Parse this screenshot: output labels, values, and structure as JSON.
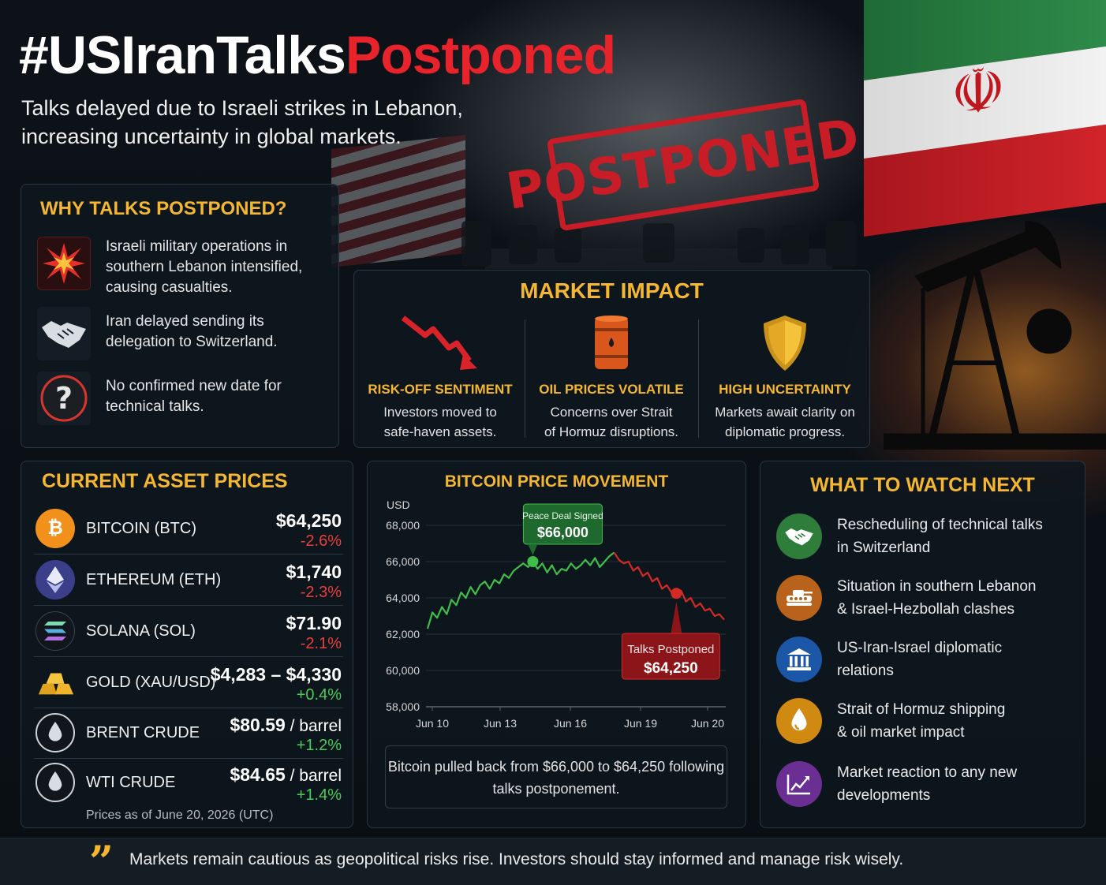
{
  "header": {
    "title_hashtag": "#USIranTalks",
    "title_highlight": "Postponed",
    "subtitle_line1": "Talks delayed due to Israeli strikes in Lebanon,",
    "subtitle_line2": "increasing uncertainty in global markets.",
    "stamp_text": "POSTPONED"
  },
  "why": {
    "title": "WHY TALKS POSTPONED?",
    "items": [
      {
        "icon": "explosion-icon",
        "text": "Israeli military operations in southern Lebanon intensified, causing casualties."
      },
      {
        "icon": "handshake-icon",
        "text": "Iran delayed sending its delegation to Switzerland."
      },
      {
        "icon": "question-icon",
        "text": "No confirmed new date for technical talks."
      }
    ]
  },
  "market_impact": {
    "title": "MARKET IMPACT",
    "items": [
      {
        "icon": "down-trend-arrow-icon",
        "heading": "RISK-OFF SENTIMENT",
        "line1": "Investors moved to",
        "line2": "safe-haven assets."
      },
      {
        "icon": "oil-barrel-icon",
        "heading": "OIL PRICES VOLATILE",
        "line1": "Concerns over Strait",
        "line2": "of Hormuz disruptions."
      },
      {
        "icon": "shield-icon",
        "heading": "HIGH UNCERTAINTY",
        "line1": "Markets await clarity on",
        "line2": "diplomatic progress."
      }
    ]
  },
  "prices": {
    "title": "CURRENT ASSET PRICES",
    "assets": [
      {
        "icon": "bitcoin-icon",
        "name": "BITCOIN (BTC)",
        "price": "$64,250",
        "unit": "",
        "change": "-2.6%",
        "direction": "down"
      },
      {
        "icon": "ethereum-icon",
        "name": "ETHEREUM (ETH)",
        "price": "$1,740",
        "unit": "",
        "change": "-2.3%",
        "direction": "down"
      },
      {
        "icon": "solana-icon",
        "name": "SOLANA (SOL)",
        "price": "$71.90",
        "unit": "",
        "change": "-2.1%",
        "direction": "down"
      },
      {
        "icon": "gold-bars-icon",
        "name": "GOLD (XAU/USD)",
        "price": "$4,283 – $4,330",
        "unit": "",
        "change": "+0.4%",
        "direction": "up"
      },
      {
        "icon": "oil-drop-icon",
        "name": "BRENT CRUDE",
        "price": "$80.59",
        "unit": " / barrel",
        "change": "+1.2%",
        "direction": "up"
      },
      {
        "icon": "oil-drop-icon",
        "name": "WTI CRUDE",
        "price": "$84.65",
        "unit": " / barrel",
        "change": "+1.4%",
        "direction": "up"
      }
    ],
    "as_of": "Prices as of June 20, 2026 (UTC)"
  },
  "chart_data": {
    "type": "line",
    "title": "BITCOIN PRICE MOVEMENT",
    "ylabel": "USD",
    "ylim": [
      58000,
      68000
    ],
    "yticks": [
      58000,
      60000,
      62000,
      64000,
      66000,
      68000
    ],
    "ytick_labels": [
      "58,000",
      "60,000",
      "62,000",
      "64,000",
      "66,000",
      "68,000"
    ],
    "xtick_labels": [
      "Jun 10",
      "Jun 13",
      "Jun 16",
      "Jun 19",
      "Jun 20"
    ],
    "series": [
      {
        "segment": "before",
        "color": "#3fbf4a",
        "values": [
          62300,
          63200,
          62900,
          63500,
          63100,
          63900,
          63600,
          64300,
          64000,
          64600,
          64200,
          64700,
          64900,
          64500,
          65000,
          64800,
          65300,
          65100,
          65500,
          65700,
          65900,
          65700,
          66000,
          65600,
          65900,
          65400,
          65800,
          65300,
          65600,
          65500,
          65900,
          65600,
          65800,
          66100,
          65800,
          66200,
          65700,
          66000,
          66300,
          66500
        ]
      },
      {
        "segment": "after",
        "color": "#d42a26",
        "values": [
          66500,
          66100,
          65900,
          66000,
          65500,
          65700,
          65200,
          65400,
          64900,
          65100,
          64500,
          64700,
          64300,
          64250,
          64400,
          63800,
          64000,
          63500,
          63700,
          63300,
          63400,
          63000,
          63100,
          62800
        ]
      }
    ],
    "annotations": [
      {
        "label": "Peace Deal Signed",
        "value_label": "$66,000",
        "color": "#1e6a2e"
      },
      {
        "label": "Talks Postponed",
        "value_label": "$64,250",
        "color": "#8c1519"
      }
    ],
    "note": "Bitcoin pulled back from $66,000 to $64,250 following talks postponement."
  },
  "watch": {
    "title": "WHAT TO WATCH NEXT",
    "items": [
      {
        "icon": "handshake-icon",
        "color": "#2e7d3a",
        "line1": "Rescheduling of technical talks",
        "line2": "in Switzerland"
      },
      {
        "icon": "tank-icon",
        "color": "#b8621b",
        "line1": "Situation in southern Lebanon",
        "line2": "& Israel-Hezbollah clashes"
      },
      {
        "icon": "government-building-icon",
        "color": "#1c56a6",
        "line1": "US-Iran-Israel diplomatic",
        "line2": "relations"
      },
      {
        "icon": "oil-drop-icon",
        "color": "#d08a12",
        "line1": "Strait of Hormuz shipping",
        "line2": "& oil market impact"
      },
      {
        "icon": "line-chart-icon",
        "color": "#6b2f94",
        "line1": "Market reaction to any new",
        "line2": "developments"
      }
    ]
  },
  "footer": {
    "text": "Markets remain cautious as geopolitical risks rise. Investors should stay informed and manage risk wisely."
  }
}
